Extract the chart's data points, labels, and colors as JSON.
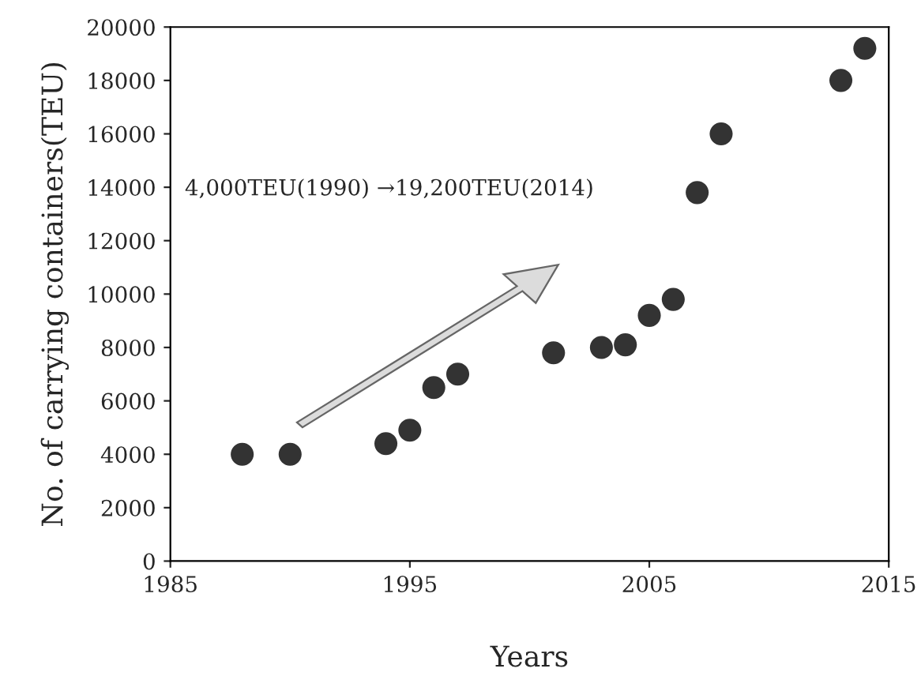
{
  "chart_data": {
    "type": "scatter",
    "xlabel": "Years",
    "ylabel": "No. of carrying containers(TEU)",
    "x": [
      1988,
      1990,
      1994,
      1995,
      1996,
      1997,
      2001,
      2003,
      2004,
      2005,
      2006,
      2007,
      2008,
      2013,
      2014
    ],
    "series": [
      {
        "color": "#333333",
        "values": [
          4000,
          4000,
          4400,
          4900,
          6500,
          7000,
          7800,
          8000,
          8100,
          9200,
          9800,
          13800,
          16000,
          18000,
          19200
        ]
      }
    ],
    "xlim": [
      1985,
      2015
    ],
    "xticks": [
      1985,
      1995,
      2005,
      2015
    ],
    "ylim": [
      0,
      20000
    ],
    "yticks": [
      0,
      2000,
      4000,
      6000,
      8000,
      10000,
      12000,
      14000,
      16000,
      18000,
      20000
    ],
    "annotations": [
      "4,000TEU(1990) →19,200TEU(2014)"
    ],
    "marker": "circle",
    "grid": false
  }
}
